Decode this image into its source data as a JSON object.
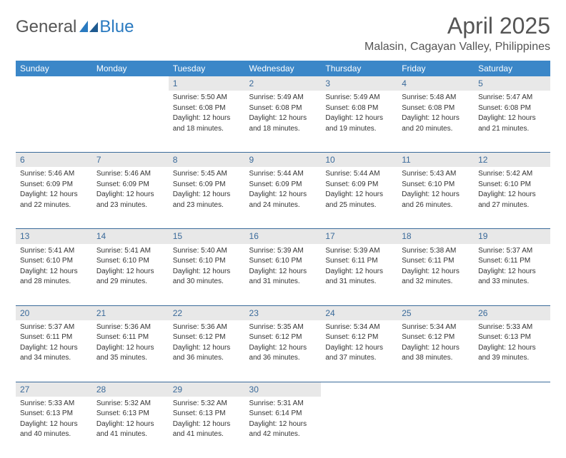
{
  "brand": {
    "general": "General",
    "blue": "Blue"
  },
  "title": "April 2025",
  "location": "Malasin, Cagayan Valley, Philippines",
  "colors": {
    "header_bg": "#3b87c8",
    "header_text": "#ffffff",
    "daynum_bg": "#e8e8e8",
    "daynum_text": "#3a6a9a",
    "border": "#3a6a9a",
    "body_text": "#333333",
    "logo_blue": "#2a7ac0",
    "logo_gray": "#555555"
  },
  "day_headers": [
    "Sunday",
    "Monday",
    "Tuesday",
    "Wednesday",
    "Thursday",
    "Friday",
    "Saturday"
  ],
  "weeks": [
    [
      null,
      null,
      {
        "n": "1",
        "sr": "Sunrise: 5:50 AM",
        "ss": "Sunset: 6:08 PM",
        "d1": "Daylight: 12 hours",
        "d2": "and 18 minutes."
      },
      {
        "n": "2",
        "sr": "Sunrise: 5:49 AM",
        "ss": "Sunset: 6:08 PM",
        "d1": "Daylight: 12 hours",
        "d2": "and 18 minutes."
      },
      {
        "n": "3",
        "sr": "Sunrise: 5:49 AM",
        "ss": "Sunset: 6:08 PM",
        "d1": "Daylight: 12 hours",
        "d2": "and 19 minutes."
      },
      {
        "n": "4",
        "sr": "Sunrise: 5:48 AM",
        "ss": "Sunset: 6:08 PM",
        "d1": "Daylight: 12 hours",
        "d2": "and 20 minutes."
      },
      {
        "n": "5",
        "sr": "Sunrise: 5:47 AM",
        "ss": "Sunset: 6:08 PM",
        "d1": "Daylight: 12 hours",
        "d2": "and 21 minutes."
      }
    ],
    [
      {
        "n": "6",
        "sr": "Sunrise: 5:46 AM",
        "ss": "Sunset: 6:09 PM",
        "d1": "Daylight: 12 hours",
        "d2": "and 22 minutes."
      },
      {
        "n": "7",
        "sr": "Sunrise: 5:46 AM",
        "ss": "Sunset: 6:09 PM",
        "d1": "Daylight: 12 hours",
        "d2": "and 23 minutes."
      },
      {
        "n": "8",
        "sr": "Sunrise: 5:45 AM",
        "ss": "Sunset: 6:09 PM",
        "d1": "Daylight: 12 hours",
        "d2": "and 23 minutes."
      },
      {
        "n": "9",
        "sr": "Sunrise: 5:44 AM",
        "ss": "Sunset: 6:09 PM",
        "d1": "Daylight: 12 hours",
        "d2": "and 24 minutes."
      },
      {
        "n": "10",
        "sr": "Sunrise: 5:44 AM",
        "ss": "Sunset: 6:09 PM",
        "d1": "Daylight: 12 hours",
        "d2": "and 25 minutes."
      },
      {
        "n": "11",
        "sr": "Sunrise: 5:43 AM",
        "ss": "Sunset: 6:10 PM",
        "d1": "Daylight: 12 hours",
        "d2": "and 26 minutes."
      },
      {
        "n": "12",
        "sr": "Sunrise: 5:42 AM",
        "ss": "Sunset: 6:10 PM",
        "d1": "Daylight: 12 hours",
        "d2": "and 27 minutes."
      }
    ],
    [
      {
        "n": "13",
        "sr": "Sunrise: 5:41 AM",
        "ss": "Sunset: 6:10 PM",
        "d1": "Daylight: 12 hours",
        "d2": "and 28 minutes."
      },
      {
        "n": "14",
        "sr": "Sunrise: 5:41 AM",
        "ss": "Sunset: 6:10 PM",
        "d1": "Daylight: 12 hours",
        "d2": "and 29 minutes."
      },
      {
        "n": "15",
        "sr": "Sunrise: 5:40 AM",
        "ss": "Sunset: 6:10 PM",
        "d1": "Daylight: 12 hours",
        "d2": "and 30 minutes."
      },
      {
        "n": "16",
        "sr": "Sunrise: 5:39 AM",
        "ss": "Sunset: 6:10 PM",
        "d1": "Daylight: 12 hours",
        "d2": "and 31 minutes."
      },
      {
        "n": "17",
        "sr": "Sunrise: 5:39 AM",
        "ss": "Sunset: 6:11 PM",
        "d1": "Daylight: 12 hours",
        "d2": "and 31 minutes."
      },
      {
        "n": "18",
        "sr": "Sunrise: 5:38 AM",
        "ss": "Sunset: 6:11 PM",
        "d1": "Daylight: 12 hours",
        "d2": "and 32 minutes."
      },
      {
        "n": "19",
        "sr": "Sunrise: 5:37 AM",
        "ss": "Sunset: 6:11 PM",
        "d1": "Daylight: 12 hours",
        "d2": "and 33 minutes."
      }
    ],
    [
      {
        "n": "20",
        "sr": "Sunrise: 5:37 AM",
        "ss": "Sunset: 6:11 PM",
        "d1": "Daylight: 12 hours",
        "d2": "and 34 minutes."
      },
      {
        "n": "21",
        "sr": "Sunrise: 5:36 AM",
        "ss": "Sunset: 6:11 PM",
        "d1": "Daylight: 12 hours",
        "d2": "and 35 minutes."
      },
      {
        "n": "22",
        "sr": "Sunrise: 5:36 AM",
        "ss": "Sunset: 6:12 PM",
        "d1": "Daylight: 12 hours",
        "d2": "and 36 minutes."
      },
      {
        "n": "23",
        "sr": "Sunrise: 5:35 AM",
        "ss": "Sunset: 6:12 PM",
        "d1": "Daylight: 12 hours",
        "d2": "and 36 minutes."
      },
      {
        "n": "24",
        "sr": "Sunrise: 5:34 AM",
        "ss": "Sunset: 6:12 PM",
        "d1": "Daylight: 12 hours",
        "d2": "and 37 minutes."
      },
      {
        "n": "25",
        "sr": "Sunrise: 5:34 AM",
        "ss": "Sunset: 6:12 PM",
        "d1": "Daylight: 12 hours",
        "d2": "and 38 minutes."
      },
      {
        "n": "26",
        "sr": "Sunrise: 5:33 AM",
        "ss": "Sunset: 6:13 PM",
        "d1": "Daylight: 12 hours",
        "d2": "and 39 minutes."
      }
    ],
    [
      {
        "n": "27",
        "sr": "Sunrise: 5:33 AM",
        "ss": "Sunset: 6:13 PM",
        "d1": "Daylight: 12 hours",
        "d2": "and 40 minutes."
      },
      {
        "n": "28",
        "sr": "Sunrise: 5:32 AM",
        "ss": "Sunset: 6:13 PM",
        "d1": "Daylight: 12 hours",
        "d2": "and 41 minutes."
      },
      {
        "n": "29",
        "sr": "Sunrise: 5:32 AM",
        "ss": "Sunset: 6:13 PM",
        "d1": "Daylight: 12 hours",
        "d2": "and 41 minutes."
      },
      {
        "n": "30",
        "sr": "Sunrise: 5:31 AM",
        "ss": "Sunset: 6:14 PM",
        "d1": "Daylight: 12 hours",
        "d2": "and 42 minutes."
      },
      null,
      null,
      null
    ]
  ]
}
